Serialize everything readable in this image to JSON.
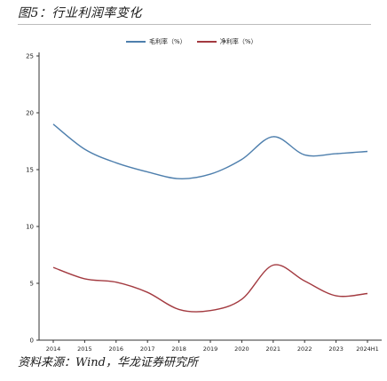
{
  "figure_title": "图5：行业利润率变化",
  "source_text": "资料来源：Wind，华龙证券研究所",
  "colors": {
    "gross": "#4e7fad",
    "net": "#a33a40",
    "axis": "#333333",
    "rule": "#bcbcbc"
  },
  "chart_data": {
    "type": "line",
    "x": [
      "2014",
      "2015",
      "2016",
      "2017",
      "2018",
      "2019",
      "2020",
      "2021",
      "2022",
      "2023",
      "2024H1"
    ],
    "series": [
      {
        "name": "毛利率（%）",
        "values": [
          19.0,
          16.8,
          15.6,
          14.8,
          14.2,
          14.6,
          15.9,
          17.9,
          16.3,
          16.4,
          16.6
        ]
      },
      {
        "name": "净利率（%）",
        "values": [
          6.4,
          5.4,
          5.1,
          4.2,
          2.7,
          2.6,
          3.6,
          6.6,
          5.2,
          3.9,
          4.1
        ]
      }
    ],
    "yticks": [
      0,
      5,
      10,
      15,
      20,
      25
    ],
    "ylim": [
      0,
      25
    ],
    "grid": false,
    "legend_position": "top-center"
  }
}
